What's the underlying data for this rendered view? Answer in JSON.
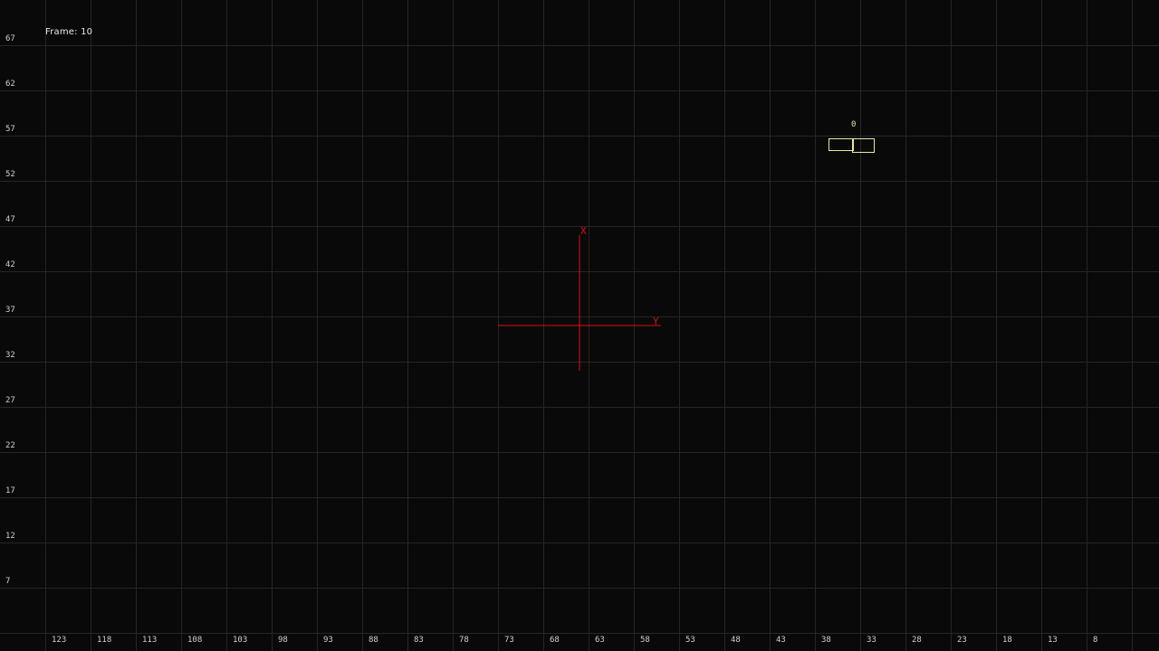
{
  "frame": {
    "label": "Frame: 10"
  },
  "colors": {
    "background": "#090909",
    "grid": "#262626",
    "axis_label": "#d0d0d0",
    "origin_axes": "#e01010",
    "object": "#e8e8a0"
  },
  "grid": {
    "x_tick_labels": [
      "123",
      "118",
      "113",
      "108",
      "103",
      "98",
      "93",
      "88",
      "83",
      "78",
      "73",
      "68",
      "63",
      "58",
      "53",
      "48",
      "43",
      "38",
      "33",
      "28",
      "23",
      "18",
      "13",
      "8"
    ],
    "y_tick_labels": [
      "67",
      "62",
      "57",
      "52",
      "47",
      "42",
      "37",
      "32",
      "27",
      "22",
      "17",
      "12",
      "7"
    ]
  },
  "origin": {
    "x_label": "X",
    "y_label": "Y"
  },
  "objects": [
    {
      "id_label": "0"
    }
  ]
}
